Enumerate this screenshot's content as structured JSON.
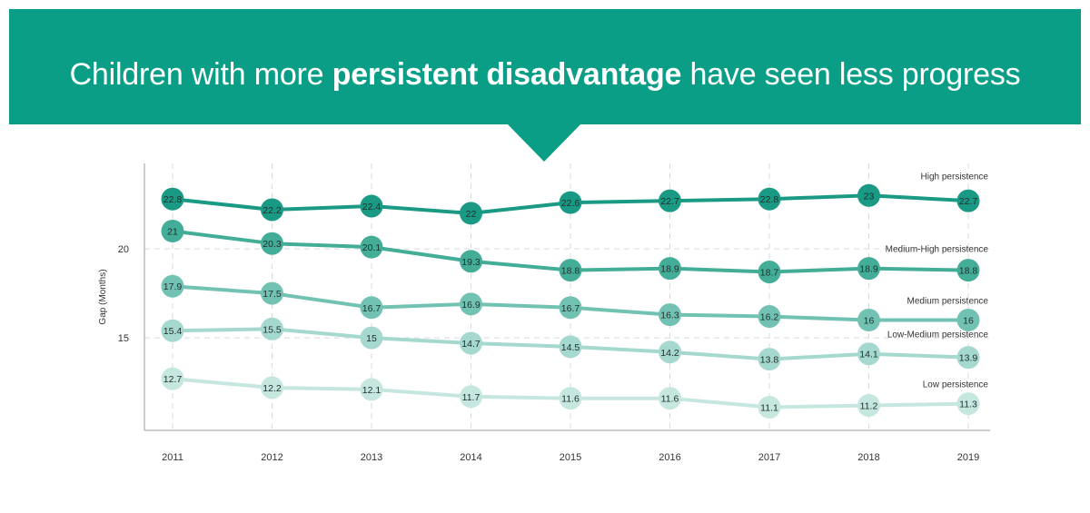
{
  "title": {
    "part1": "Children with more ",
    "bold": "persistent disadvantage",
    "part2": " have seen less progress"
  },
  "chart_data": {
    "type": "line",
    "ylabel": "Gap (Months)",
    "xlabel": "",
    "x": [
      "2011",
      "2012",
      "2013",
      "2014",
      "2015",
      "2016",
      "2017",
      "2018",
      "2019"
    ],
    "ylim": [
      9.8,
      24.8
    ],
    "yticks": [
      15,
      20
    ],
    "grid": "dashed",
    "series": [
      {
        "name": "High persistence",
        "color": "#1a9a84",
        "values": [
          22.8,
          22.2,
          22.4,
          22,
          22.6,
          22.7,
          22.8,
          23,
          22.7
        ]
      },
      {
        "name": "Medium-High persistence",
        "color": "#44ad98",
        "values": [
          21,
          20.3,
          20.1,
          19.3,
          18.8,
          18.9,
          18.7,
          18.9,
          18.8
        ]
      },
      {
        "name": "Medium persistence",
        "color": "#72c2b3",
        "values": [
          17.9,
          17.5,
          16.7,
          16.9,
          16.7,
          16.3,
          16.2,
          16,
          16
        ]
      },
      {
        "name": "Low-Medium persistence",
        "color": "#a5d9cf",
        "values": [
          15.4,
          15.5,
          15,
          14.7,
          14.5,
          14.2,
          13.8,
          14.1,
          13.9
        ]
      },
      {
        "name": "Low persistence",
        "color": "#c6e7e0",
        "values": [
          12.7,
          12.2,
          12.1,
          11.7,
          11.6,
          11.6,
          11.1,
          11.2,
          11.3
        ]
      }
    ]
  }
}
